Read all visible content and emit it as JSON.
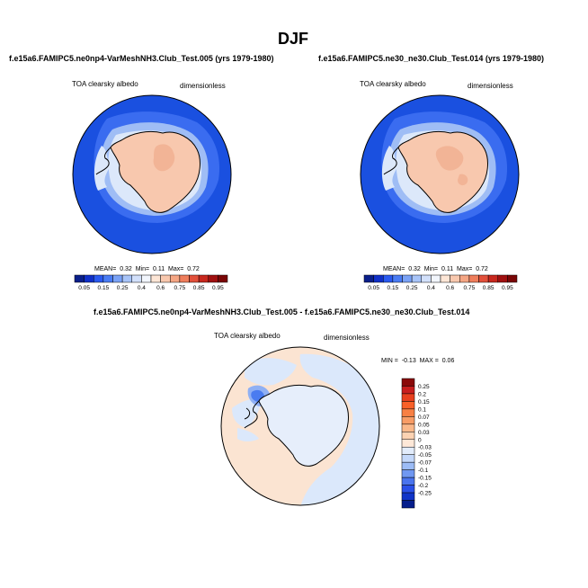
{
  "page_title": "DJF",
  "colors": {
    "ocean_dark": "#1a50e0",
    "ocean_mid": "#3a6cf0",
    "ocean_light": "#9fbdf5",
    "sea_ice": "#dce8fa",
    "land_salmon": "#f8c8ae",
    "land_deep": "#f2b496",
    "diff_pos_light": "#fbe4d2",
    "diff_neg_light": "#dbe8fb"
  },
  "chart_data": [
    {
      "type": "heatmap",
      "projection": "south-polar-stereographic",
      "title": "f.e15a6.FAMIPC5.ne0np4-VarMeshNH3.Club_Test.005 (yrs 1979-1980)",
      "left_label": "TOA clearsky albedo",
      "right_label": "dimensionless",
      "stats": {
        "mean_label": "MEAN=",
        "mean": "0.32",
        "min_label": "Min=",
        "min": "0.11",
        "max_label": "Max=",
        "max": "0.72"
      },
      "colorbar": {
        "orientation": "horizontal",
        "tick_labels": [
          "0.05",
          "0.15",
          "0.25",
          "0.4",
          "0.6",
          "0.75",
          "0.85",
          "0.95"
        ],
        "colors": [
          "#0a1f8a",
          "#1030c8",
          "#2a5af0",
          "#4a7cf4",
          "#7aa2f6",
          "#a8c4f8",
          "#d2e0fb",
          "#f2f6fd",
          "#fde6d6",
          "#f8c8ae",
          "#f5a684",
          "#ef7e5c",
          "#e2503a",
          "#c8281e",
          "#a01010",
          "#7a0606"
        ]
      }
    },
    {
      "type": "heatmap",
      "projection": "south-polar-stereographic",
      "title": "f.e15a6.FAMIPC5.ne30_ne30.Club_Test.014 (yrs 1979-1980)",
      "left_label": "TOA clearsky albedo",
      "right_label": "dimensionless",
      "stats": {
        "mean_label": "MEAN=",
        "mean": "0.32",
        "min_label": "Min=",
        "min": "0.11",
        "max_label": "Max=",
        "max": "0.72"
      },
      "colorbar": {
        "orientation": "horizontal",
        "tick_labels": [
          "0.05",
          "0.15",
          "0.25",
          "0.4",
          "0.6",
          "0.75",
          "0.85",
          "0.95"
        ],
        "colors": [
          "#0a1f8a",
          "#1030c8",
          "#2a5af0",
          "#4a7cf4",
          "#7aa2f6",
          "#a8c4f8",
          "#d2e0fb",
          "#f2f6fd",
          "#fde6d6",
          "#f8c8ae",
          "#f5a684",
          "#ef7e5c",
          "#e2503a",
          "#c8281e",
          "#a01010",
          "#7a0606"
        ]
      }
    },
    {
      "type": "heatmap",
      "projection": "south-polar-stereographic",
      "title": "f.e15a6.FAMIPC5.ne0np4-VarMeshNH3.Club_Test.005 - f.e15a6.FAMIPC5.ne30_ne30.Club_Test.014",
      "left_label": "TOA clearsky albedo",
      "right_label": "dimensionless",
      "stats": {
        "min_label": "MIN =",
        "min": "-0.13",
        "max_label": "MAX =",
        "max": "0.06"
      },
      "colorbar": {
        "orientation": "vertical",
        "tick_labels": [
          "0.25",
          "0.2",
          "0.15",
          "0.1",
          "0.07",
          "0.05",
          "0.03",
          "0",
          "-0.03",
          "-0.05",
          "-0.07",
          "-0.1",
          "-0.15",
          "-0.2",
          "-0.25"
        ],
        "colors": [
          "#8a0a0a",
          "#c81e1e",
          "#e8401e",
          "#f86028",
          "#f88044",
          "#f89c66",
          "#fab88a",
          "#fcd2b2",
          "#fde8d8",
          "#e2ecfb",
          "#c4d8fa",
          "#9cbcf6",
          "#7098f2",
          "#4a74ee",
          "#2a50e8",
          "#1034c8",
          "#061e8c"
        ]
      }
    }
  ]
}
